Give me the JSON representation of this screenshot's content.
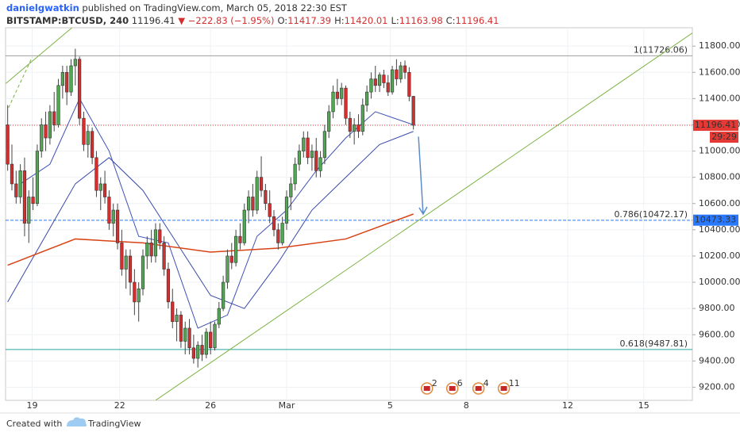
{
  "header": {
    "author": "danielgwatkin",
    "published": "published on TradingView.com, March 05, 2018 22:30 EST",
    "symbol": "BITSTAMP:BTCUSD, 240",
    "last": "11196.41",
    "change": "▼ −222.83 (−1.95%)",
    "ohlc": [
      [
        "O:",
        "11417.39"
      ],
      [
        "H:",
        "11420.01"
      ],
      [
        "L:",
        "11163.98"
      ],
      [
        "C:",
        "11196.41"
      ]
    ]
  },
  "footer": {
    "created": "Created with",
    "brand": "TradingView"
  },
  "chart_data": {
    "type": "candlestick",
    "up_color": "#53a653",
    "down_color": "#d32f2f",
    "grid": true,
    "xlim": [
      -0.5,
      162
    ],
    "ylim": [
      9100,
      11940
    ],
    "xticks": [
      {
        "value": 5.8,
        "label": "19"
      },
      {
        "value": 26.5,
        "label": "22"
      },
      {
        "value": 48,
        "label": "26"
      },
      {
        "value": 66,
        "label": "Mar"
      },
      {
        "value": 90.5,
        "label": "5"
      },
      {
        "value": 108.5,
        "label": "8"
      },
      {
        "value": 132.5,
        "label": "12"
      },
      {
        "value": 150.5,
        "label": "15"
      }
    ],
    "yticks": [
      {
        "value": 9200,
        "label": "9200.00"
      },
      {
        "value": 9400,
        "label": "9400.00"
      },
      {
        "value": 9600,
        "label": "9600.00"
      },
      {
        "value": 9800,
        "label": "9800.00"
      },
      {
        "value": 10000,
        "label": "10000.00"
      },
      {
        "value": 10200,
        "label": "10200.00"
      },
      {
        "value": 10400,
        "label": "10400.00"
      },
      {
        "value": 10600,
        "label": "10600.00"
      },
      {
        "value": 10800,
        "label": "10800.00"
      },
      {
        "value": 11000,
        "label": "11000.00"
      },
      {
        "value": 11200,
        "label": "11200.00"
      },
      {
        "value": 11400,
        "label": "11400.00"
      },
      {
        "value": 11600,
        "label": "11600.00"
      },
      {
        "value": 11800,
        "label": "11800.00"
      }
    ],
    "ohlc": [
      [
        11200,
        11350,
        10850,
        10900
      ],
      [
        10900,
        11050,
        10700,
        10750
      ],
      [
        10750,
        10850,
        10600,
        10650
      ],
      [
        10650,
        10900,
        10600,
        10850
      ],
      [
        10850,
        10950,
        10350,
        10450
      ],
      [
        10450,
        10700,
        10300,
        10650
      ],
      [
        10650,
        10800,
        10550,
        10600
      ],
      [
        10600,
        11050,
        10580,
        11000
      ],
      [
        11000,
        11250,
        10950,
        11200
      ],
      [
        11200,
        11300,
        11000,
        11100
      ],
      [
        11100,
        11350,
        11050,
        11300
      ],
      [
        11300,
        11450,
        11150,
        11200
      ],
      [
        11200,
        11550,
        11180,
        11500
      ],
      [
        11500,
        11650,
        11400,
        11600
      ],
      [
        11600,
        11650,
        11350,
        11450
      ],
      [
        11450,
        11700,
        11420,
        11650
      ],
      [
        11650,
        11780,
        11500,
        11700
      ],
      [
        11700,
        11720,
        11200,
        11250
      ],
      [
        11250,
        11300,
        11000,
        11050
      ],
      [
        11050,
        11200,
        10950,
        11150
      ],
      [
        11150,
        11180,
        10900,
        10950
      ],
      [
        10950,
        11000,
        10650,
        10700
      ],
      [
        10700,
        10800,
        10550,
        10750
      ],
      [
        10750,
        10850,
        10600,
        10650
      ],
      [
        10650,
        10700,
        10400,
        10450
      ],
      [
        10450,
        10600,
        10350,
        10550
      ],
      [
        10550,
        10600,
        10250,
        10300
      ],
      [
        10300,
        10400,
        10050,
        10100
      ],
      [
        10100,
        10250,
        9950,
        10200
      ],
      [
        10200,
        10250,
        9900,
        10000
      ],
      [
        10000,
        10100,
        9750,
        9850
      ],
      [
        9850,
        10000,
        9700,
        9950
      ],
      [
        9950,
        10250,
        9900,
        10200
      ],
      [
        10200,
        10350,
        10100,
        10300
      ],
      [
        10300,
        10400,
        10150,
        10200
      ],
      [
        10200,
        10450,
        10150,
        10400
      ],
      [
        10400,
        10450,
        10250,
        10300
      ],
      [
        10300,
        10350,
        10050,
        10100
      ],
      [
        10100,
        10150,
        9800,
        9850
      ],
      [
        9850,
        9950,
        9650,
        9700
      ],
      [
        9700,
        9800,
        9550,
        9750
      ],
      [
        9750,
        9780,
        9500,
        9550
      ],
      [
        9550,
        9700,
        9450,
        9650
      ],
      [
        9650,
        9720,
        9450,
        9500
      ],
      [
        9500,
        9600,
        9380,
        9420
      ],
      [
        9420,
        9550,
        9350,
        9520
      ],
      [
        9520,
        9600,
        9400,
        9450
      ],
      [
        9450,
        9650,
        9420,
        9620
      ],
      [
        9620,
        9700,
        9450,
        9500
      ],
      [
        9500,
        9700,
        9480,
        9680
      ],
      [
        9680,
        9850,
        9650,
        9800
      ],
      [
        9800,
        10050,
        9780,
        10000
      ],
      [
        10000,
        10250,
        9950,
        10200
      ],
      [
        10200,
        10300,
        10100,
        10150
      ],
      [
        10150,
        10400,
        10120,
        10350
      ],
      [
        10350,
        10450,
        10250,
        10300
      ],
      [
        10300,
        10600,
        10280,
        10550
      ],
      [
        10550,
        10700,
        10450,
        10650
      ],
      [
        10650,
        10750,
        10500,
        10550
      ],
      [
        10550,
        10850,
        10520,
        10800
      ],
      [
        10800,
        10960,
        10650,
        10700
      ],
      [
        10700,
        10750,
        10550,
        10600
      ],
      [
        10600,
        10700,
        10450,
        10500
      ],
      [
        10500,
        10550,
        10350,
        10400
      ],
      [
        10400,
        10450,
        10250,
        10300
      ],
      [
        10300,
        10500,
        10280,
        10450
      ],
      [
        10450,
        10700,
        10400,
        10650
      ],
      [
        10650,
        10800,
        10550,
        10750
      ],
      [
        10750,
        10950,
        10700,
        10900
      ],
      [
        10900,
        11050,
        10850,
        11000
      ],
      [
        11000,
        11150,
        10950,
        11100
      ],
      [
        11100,
        11150,
        10900,
        10950
      ],
      [
        10950,
        11050,
        10850,
        11000
      ],
      [
        11000,
        11100,
        10800,
        10850
      ],
      [
        10850,
        11000,
        10800,
        10950
      ],
      [
        10950,
        11200,
        10900,
        11150
      ],
      [
        11150,
        11350,
        11100,
        11300
      ],
      [
        11300,
        11500,
        11250,
        11450
      ],
      [
        11450,
        11550,
        11350,
        11400
      ],
      [
        11400,
        11520,
        11350,
        11480
      ],
      [
        11480,
        11500,
        11200,
        11250
      ],
      [
        11250,
        11300,
        11100,
        11150
      ],
      [
        11150,
        11250,
        11050,
        11200
      ],
      [
        11200,
        11280,
        11100,
        11150
      ],
      [
        11150,
        11400,
        11120,
        11350
      ],
      [
        11350,
        11500,
        11300,
        11450
      ],
      [
        11450,
        11600,
        11400,
        11550
      ],
      [
        11550,
        11650,
        11450,
        11500
      ],
      [
        11500,
        11600,
        11450,
        11580
      ],
      [
        11580,
        11620,
        11480,
        11520
      ],
      [
        11520,
        11580,
        11420,
        11450
      ],
      [
        11450,
        11650,
        11430,
        11620
      ],
      [
        11620,
        11700,
        11500,
        11550
      ],
      [
        11550,
        11680,
        11520,
        11650
      ],
      [
        11650,
        11690,
        11550,
        11600
      ],
      [
        11600,
        11640,
        11380,
        11417.39
      ],
      [
        11417.39,
        11420.01,
        11163.98,
        11196.41
      ]
    ],
    "series": [
      {
        "color": "#3f51b5",
        "x": [
          3,
          10,
          17,
          24,
          31,
          38,
          45,
          52,
          59,
          66,
          73,
          80,
          87,
          96
        ],
        "values": [
          10750,
          10900,
          11400,
          11000,
          10350,
          10300,
          9650,
          9750,
          10350,
          10550,
          10850,
          11100,
          11300,
          11200
        ]
      },
      {
        "color": "#3949ab",
        "x": [
          0,
          8,
          16,
          24,
          32,
          40,
          48,
          56,
          64,
          72,
          80,
          88,
          96
        ],
        "values": [
          9850,
          10300,
          10750,
          10950,
          10700,
          10300,
          9900,
          9800,
          10150,
          10550,
          10800,
          11050,
          11150
        ]
      },
      {
        "color": "#d84315",
        "x": [
          0,
          16,
          32,
          48,
          64,
          80,
          96
        ],
        "values": [
          10130,
          10330,
          10300,
          10230,
          10260,
          10330,
          10520
        ]
      }
    ],
    "fib_levels": [
      {
        "value": 11726.06,
        "label": "1(11726.06)",
        "color": "#9e9e9e"
      },
      {
        "value": 10472.17,
        "label": "0.786(10472.17)",
        "color": "#2979ff"
      },
      {
        "value": 9487.81,
        "label": "0.618(9487.81)",
        "color": "#26a69a"
      }
    ],
    "trendlines": [
      {
        "x": [
          35,
          162
        ],
        "y": [
          9100,
          11900
        ],
        "color": "#7cb342"
      },
      {
        "x": [
          -0.4,
          15.2
        ],
        "y": [
          11516,
          11940
        ],
        "color": "#7cb342"
      }
    ],
    "dashed_lines": [
      {
        "x": [
          0.2,
          5.8
        ],
        "y": [
          11330,
          11715
        ],
        "color": "#7cb342"
      }
    ],
    "arrow": {
      "x": [
        97.2,
        98.3
      ],
      "y": [
        11110,
        10520
      ],
      "color": "#5b8dc9"
    },
    "last_price": {
      "value": 11196.41,
      "color": "#e53935",
      "countdown": "29:29"
    },
    "marker_price": {
      "value": 10473.33,
      "color": "#2979ff"
    },
    "events": {
      "x": [
        99.2,
        105.2,
        111.4,
        117.4
      ],
      "labels": [
        "2",
        "6",
        "4",
        "11"
      ]
    }
  }
}
